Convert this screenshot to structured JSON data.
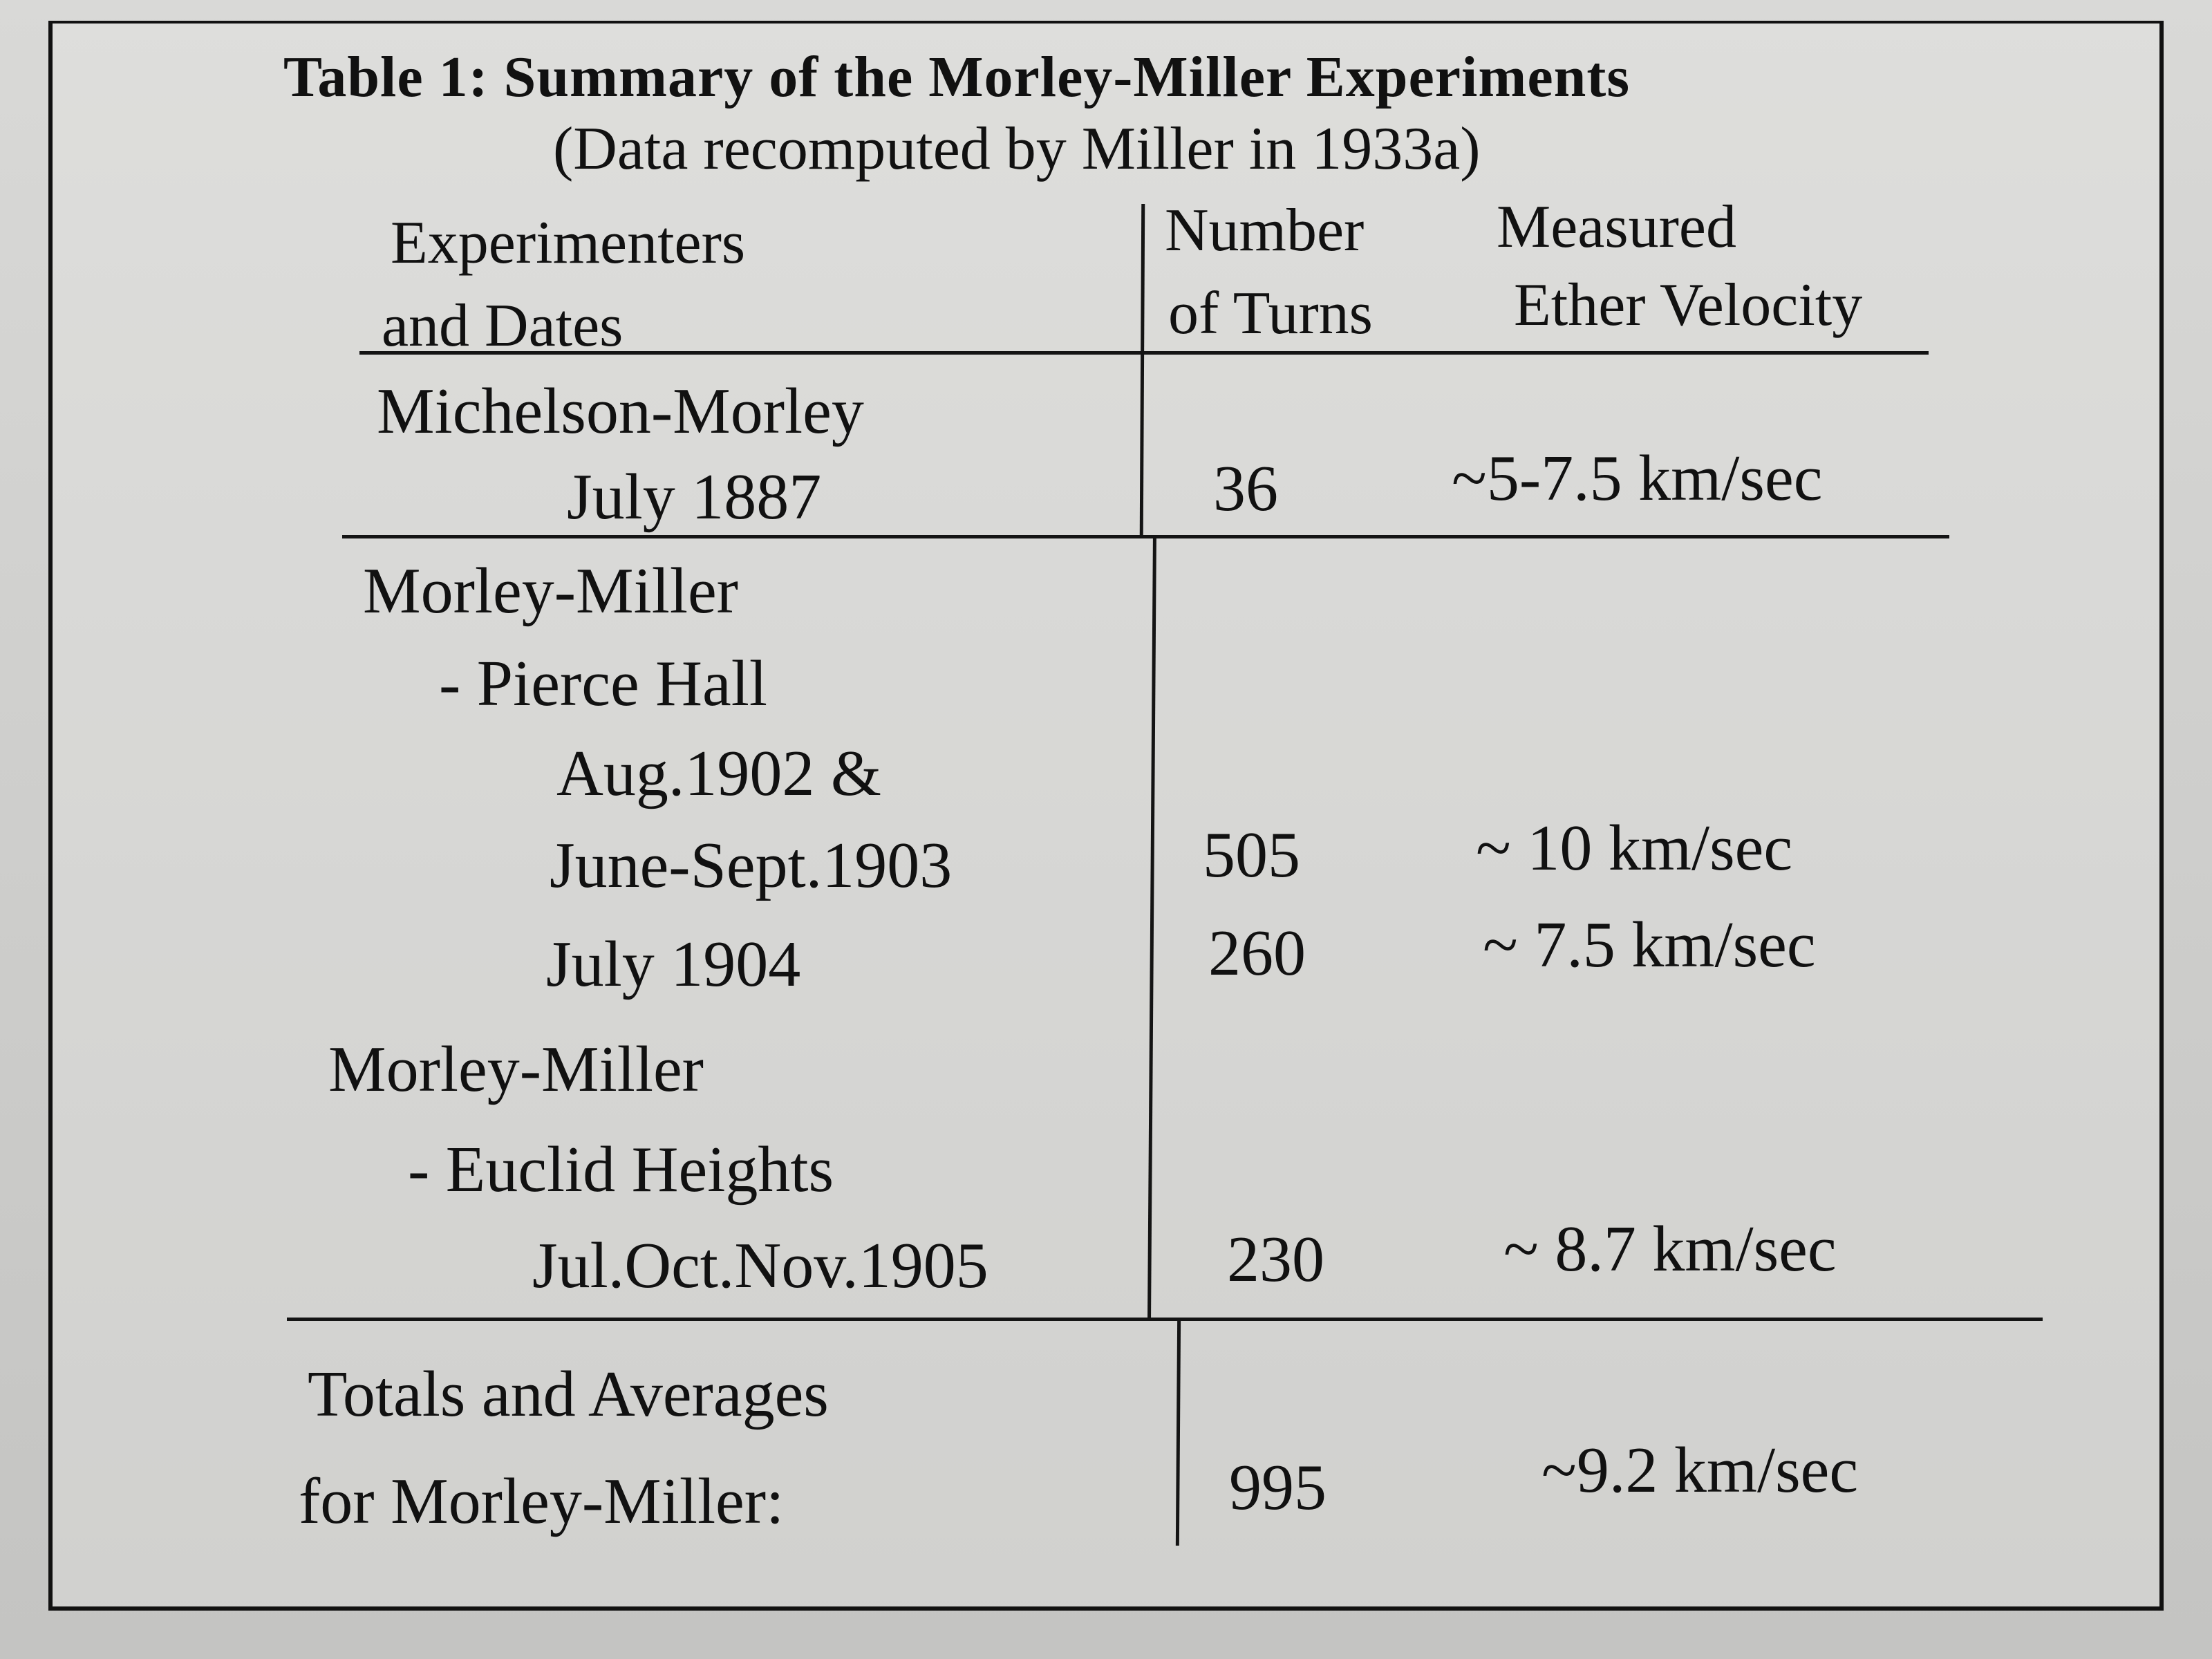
{
  "table": {
    "title": "Table 1: Summary of the Morley-Miller Experiments",
    "subtitle": "(Data recomputed by Miller in 1933a)",
    "headers": {
      "col1_line1": "Experimenters",
      "col1_line2": "and Dates",
      "col2_line1": "Number",
      "col2_line2": "of Turns",
      "col3_line1": "Measured",
      "col3_line2": "Ether Velocity"
    },
    "rows": {
      "mm_name": "Michelson-Morley",
      "mm_date": "July 1887",
      "mm_turns": "36",
      "mm_velocity": "~5-7.5 km/sec",
      "pierce_group": "Morley-Miller",
      "pierce_site": "- Pierce Hall",
      "pierce_date1": "Aug.1902 &",
      "pierce_date2": "June-Sept.1903",
      "pierce_turns1": "505",
      "pierce_velocity1": "~ 10 km/sec",
      "pierce_date3": "July 1904",
      "pierce_turns2": "260",
      "pierce_velocity2": "~ 7.5 km/sec",
      "euclid_group": "Morley-Miller",
      "euclid_site": "- Euclid Heights",
      "euclid_date": "Jul.Oct.Nov.1905",
      "euclid_turns": "230",
      "euclid_velocity": "~ 8.7 km/sec"
    },
    "totals": {
      "label_line1": "Totals and Averages",
      "label_line2": "for Morley-Miller:",
      "turns": "995",
      "velocity": "~9.2 km/sec"
    }
  }
}
